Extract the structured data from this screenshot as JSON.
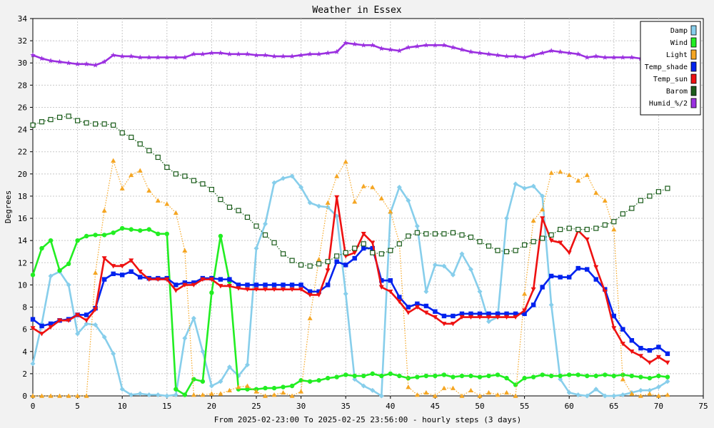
{
  "chart_data": {
    "type": "line",
    "title": "Weather in Essex",
    "xlabel": "From 2025-02-23:00 To 2025-02-25 23:56:00 - hourly steps (3 days)",
    "ylabel": "Degrees",
    "xlim": [
      0,
      75
    ],
    "ylim": [
      0,
      34
    ],
    "xticks": [
      0,
      5,
      10,
      15,
      20,
      25,
      30,
      35,
      40,
      45,
      50,
      55,
      60,
      65,
      70,
      75
    ],
    "yticks": [
      0,
      2,
      4,
      6,
      8,
      10,
      12,
      14,
      16,
      18,
      20,
      22,
      24,
      26,
      28,
      30,
      32,
      34
    ],
    "grid": true,
    "legend_position": "top-right",
    "x": [
      0,
      1,
      2,
      3,
      4,
      5,
      6,
      7,
      8,
      9,
      10,
      11,
      12,
      13,
      14,
      15,
      16,
      17,
      18,
      19,
      20,
      21,
      22,
      23,
      24,
      25,
      26,
      27,
      28,
      29,
      30,
      31,
      32,
      33,
      34,
      35,
      36,
      37,
      38,
      39,
      40,
      41,
      42,
      43,
      44,
      45,
      46,
      47,
      48,
      49,
      50,
      51,
      52,
      53,
      54,
      55,
      56,
      57,
      58,
      59,
      60,
      61,
      62,
      63,
      64,
      65,
      66,
      67,
      68,
      69,
      70,
      71
    ],
    "series": [
      {
        "name": "Damp",
        "color": "#87ceeb",
        "marker": "diamond",
        "style": "solid",
        "values": [
          2.9,
          6.5,
          10.8,
          11.2,
          10.0,
          5.6,
          6.5,
          6.4,
          5.3,
          3.8,
          0.6,
          0.1,
          0.2,
          0.1,
          0.1,
          0.0,
          0.1,
          5.2,
          7.0,
          4.0,
          0.9,
          1.3,
          2.6,
          1.8,
          2.8,
          13.3,
          15.5,
          19.2,
          19.6,
          19.8,
          18.8,
          17.4,
          17.1,
          17.0,
          16.2,
          9.2,
          1.5,
          0.9,
          0.5,
          0.0,
          16.5,
          18.8,
          17.6,
          15.3,
          9.4,
          11.8,
          11.7,
          10.9,
          12.8,
          11.4,
          9.4,
          6.7,
          7.1,
          16.0,
          19.1,
          18.7,
          18.9,
          18.0,
          8.2,
          1.5,
          0.3,
          0.1,
          0.0,
          0.6,
          0.0,
          0.0,
          0.1,
          0.3,
          0.5,
          0.5,
          0.8,
          1.3
        ]
      },
      {
        "name": "Wind",
        "color": "#22ee22",
        "marker": "circle",
        "style": "solid",
        "values": [
          10.9,
          13.3,
          14.0,
          11.3,
          11.9,
          14.0,
          14.4,
          14.5,
          14.5,
          14.7,
          15.1,
          15.0,
          14.9,
          15.0,
          14.6,
          14.6,
          0.6,
          0.1,
          1.5,
          1.3,
          9.3,
          14.4,
          10.3,
          0.6,
          0.6,
          0.6,
          0.7,
          0.7,
          0.8,
          0.9,
          1.4,
          1.3,
          1.4,
          1.6,
          1.7,
          1.9,
          1.8,
          1.8,
          2.0,
          1.8,
          2.0,
          1.8,
          1.6,
          1.7,
          1.8,
          1.8,
          1.9,
          1.7,
          1.8,
          1.8,
          1.7,
          1.8,
          1.9,
          1.6,
          1.0,
          1.6,
          1.7,
          1.9,
          1.8,
          1.8,
          1.9,
          1.9,
          1.8,
          1.8,
          1.9,
          1.8,
          1.9,
          1.8,
          1.7,
          1.6,
          1.8,
          1.7
        ]
      },
      {
        "name": "Light",
        "color": "#f5a623",
        "marker": "triangle-up",
        "style": "dotted",
        "values": [
          0,
          0,
          0,
          0,
          0,
          0,
          0,
          11.1,
          16.7,
          21.2,
          18.7,
          19.9,
          20.3,
          18.5,
          17.6,
          17.3,
          16.5,
          13.1,
          0.1,
          0.1,
          0.2,
          0.2,
          0.5,
          0.8,
          0.9,
          0.4,
          0.0,
          0.1,
          0.3,
          0.0,
          0.4,
          7.0,
          12.3,
          17.4,
          19.8,
          21.1,
          17.5,
          18.9,
          18.8,
          17.8,
          16.6,
          13.8,
          0.8,
          0.1,
          0.3,
          0.0,
          0.7,
          0.7,
          0.0,
          0.5,
          0.0,
          0.3,
          0.1,
          0.3,
          0.0,
          9.2,
          15.8,
          16.8,
          20.1,
          20.2,
          19.9,
          19.4,
          19.9,
          18.3,
          17.6,
          15.0,
          1.5,
          0.2,
          0.0,
          0.2,
          0.0,
          0.1
        ]
      },
      {
        "name": "Temp_shade",
        "color": "#0022ee",
        "marker": "square",
        "style": "solid",
        "values": [
          6.9,
          6.3,
          6.5,
          6.8,
          6.9,
          7.3,
          7.3,
          7.9,
          10.5,
          11.0,
          10.9,
          11.2,
          10.7,
          10.6,
          10.6,
          10.6,
          10.0,
          10.2,
          10.2,
          10.6,
          10.6,
          10.5,
          10.5,
          10.0,
          10.0,
          10.0,
          10.0,
          10.0,
          10.0,
          10.0,
          10.0,
          9.4,
          9.4,
          10.0,
          12.1,
          11.8,
          12.4,
          13.3,
          13.3,
          10.4,
          10.4,
          8.9,
          8.0,
          8.3,
          8.1,
          7.6,
          7.2,
          7.2,
          7.4,
          7.4,
          7.4,
          7.4,
          7.4,
          7.4,
          7.4,
          7.4,
          8.2,
          9.8,
          10.8,
          10.7,
          10.7,
          11.5,
          11.4,
          10.5,
          9.6,
          7.2,
          6.0,
          5.0,
          4.3,
          4.1,
          4.4,
          3.8
        ]
      },
      {
        "name": "Temp_sun",
        "color": "#ee1111",
        "marker": "triangle-down",
        "style": "solid",
        "values": [
          6.1,
          5.6,
          6.2,
          6.8,
          6.8,
          7.3,
          6.8,
          7.8,
          12.4,
          11.7,
          11.7,
          12.2,
          11.2,
          10.5,
          10.5,
          10.5,
          9.5,
          10.0,
          10.0,
          10.5,
          10.5,
          9.9,
          9.9,
          9.7,
          9.6,
          9.6,
          9.6,
          9.6,
          9.6,
          9.6,
          9.6,
          9.1,
          9.1,
          11.3,
          17.9,
          12.6,
          12.9,
          14.6,
          13.8,
          9.8,
          9.4,
          8.5,
          7.5,
          8.0,
          7.5,
          7.1,
          6.5,
          6.5,
          7.1,
          7.1,
          7.1,
          7.1,
          7.1,
          7.1,
          7.1,
          7.7,
          9.6,
          16.0,
          14.0,
          13.8,
          12.9,
          14.9,
          14.1,
          11.6,
          9.4,
          6.1,
          4.7,
          4.0,
          3.6,
          3.0,
          3.5,
          3.0
        ]
      },
      {
        "name": "Barom",
        "color": "#1a5c1a",
        "marker": "square-open",
        "style": "dotted",
        "values": [
          24.4,
          24.7,
          24.9,
          25.1,
          25.2,
          24.8,
          24.6,
          24.5,
          24.5,
          24.4,
          23.7,
          23.3,
          22.7,
          22.1,
          21.5,
          20.6,
          20.0,
          19.8,
          19.4,
          19.1,
          18.6,
          17.7,
          17.0,
          16.7,
          16.1,
          15.3,
          14.5,
          13.8,
          12.8,
          12.2,
          11.8,
          11.7,
          11.9,
          12.1,
          12.6,
          12.9,
          13.3,
          13.7,
          12.9,
          12.8,
          13.1,
          13.7,
          14.4,
          14.7,
          14.6,
          14.6,
          14.6,
          14.7,
          14.5,
          14.3,
          13.9,
          13.5,
          13.1,
          13.0,
          13.1,
          13.6,
          13.9,
          14.2,
          14.5,
          15.0,
          15.1,
          15.0,
          15.0,
          15.1,
          15.4,
          15.7,
          16.4,
          16.9,
          17.6,
          18.0,
          18.4,
          18.7
        ]
      },
      {
        "name": "Humid_%/2",
        "color": "#9b30e0",
        "marker": "star",
        "style": "solid",
        "values": [
          30.7,
          30.4,
          30.2,
          30.1,
          30.0,
          29.9,
          29.9,
          29.8,
          30.1,
          30.7,
          30.6,
          30.6,
          30.5,
          30.5,
          30.5,
          30.5,
          30.5,
          30.5,
          30.8,
          30.8,
          30.9,
          30.9,
          30.8,
          30.8,
          30.8,
          30.7,
          30.7,
          30.6,
          30.6,
          30.6,
          30.7,
          30.8,
          30.8,
          30.9,
          31.0,
          31.8,
          31.7,
          31.6,
          31.6,
          31.3,
          31.2,
          31.1,
          31.4,
          31.5,
          31.6,
          31.6,
          31.6,
          31.4,
          31.2,
          31.0,
          30.9,
          30.8,
          30.7,
          30.6,
          30.6,
          30.5,
          30.7,
          30.9,
          31.1,
          31.0,
          30.9,
          30.8,
          30.5,
          30.6,
          30.5,
          30.5,
          30.5,
          30.5,
          30.4,
          30.4,
          30.3,
          30.4
        ]
      }
    ]
  }
}
